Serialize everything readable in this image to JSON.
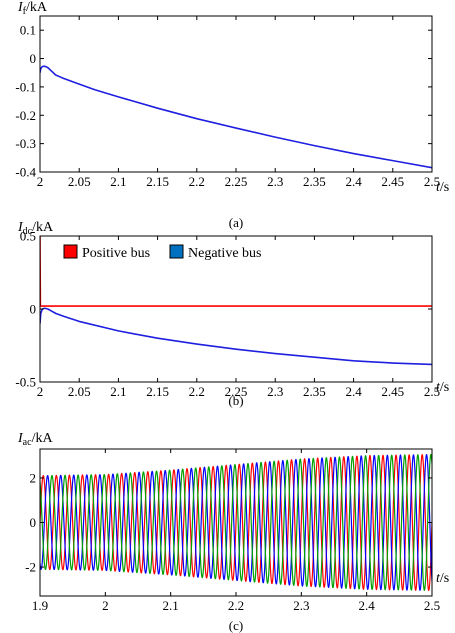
{
  "chart_data": [
    {
      "type": "line",
      "caption": "(a)",
      "ylabel": {
        "main": "I",
        "sub": "f",
        "unit": "/kA"
      },
      "xlabel": {
        "main": "t",
        "unit": "/s"
      },
      "xlim": [
        2.0,
        2.5
      ],
      "ylim": [
        -0.4,
        0.15
      ],
      "xticks": [
        2.0,
        2.05,
        2.1,
        2.15,
        2.2,
        2.25,
        2.3,
        2.35,
        2.4,
        2.45,
        2.5
      ],
      "xtick_labels": [
        "2",
        "2.05",
        "2.1",
        "2.15",
        "2.2",
        "2.25",
        "2.3",
        "2.35",
        "2.4",
        "2.45",
        "2.5"
      ],
      "yticks": [
        0.1,
        0.0,
        -0.1,
        -0.2,
        -0.3,
        -0.4
      ],
      "ytick_labels": [
        "0.1",
        "0",
        "-0.1",
        "-0.2",
        "-0.3",
        "-0.4"
      ],
      "grid": false,
      "series": [
        {
          "color": "#1f1fe0",
          "x": [
            2.0,
            2.001,
            2.003,
            2.006,
            2.01,
            2.015,
            2.02,
            2.025,
            2.03,
            2.04,
            2.05,
            2.07,
            2.1,
            2.15,
            2.2,
            2.25,
            2.3,
            2.35,
            2.4,
            2.45,
            2.5
          ],
          "y": [
            -0.05,
            -0.035,
            -0.028,
            -0.027,
            -0.032,
            -0.045,
            -0.058,
            -0.064,
            -0.07,
            -0.08,
            -0.09,
            -0.11,
            -0.135,
            -0.175,
            -0.212,
            -0.245,
            -0.277,
            -0.307,
            -0.335,
            -0.36,
            -0.385
          ]
        }
      ]
    },
    {
      "type": "line",
      "caption": "(b)",
      "ylabel": {
        "main": "I",
        "sub": "dc",
        "unit": "/kA"
      },
      "xlabel": {
        "main": "t",
        "unit": "/s"
      },
      "xlim": [
        2.0,
        2.5
      ],
      "ylim": [
        -0.5,
        0.5
      ],
      "xticks": [
        2.0,
        2.05,
        2.1,
        2.15,
        2.2,
        2.25,
        2.3,
        2.35,
        2.4,
        2.45,
        2.5
      ],
      "xtick_labels": [
        "2",
        "2.05",
        "2.1",
        "2.15",
        "2.2",
        "2.25",
        "2.3",
        "2.35",
        "2.4",
        "2.45",
        "2.5"
      ],
      "yticks": [
        0.5,
        0.0,
        -0.5
      ],
      "ytick_labels": [
        "0.5",
        "0",
        "-0.5"
      ],
      "grid": false,
      "legend_position": "top-left",
      "series": [
        {
          "name": "Positive bus",
          "color": "#ff0000",
          "legend_color": "#ff0000",
          "x": [
            2.0,
            2.0,
            2.0005,
            2.5
          ],
          "y": [
            0.02,
            0.5,
            0.02,
            0.02
          ]
        },
        {
          "name": "Negative bus",
          "color": "#1f1fe0",
          "legend_color": "#0070c0",
          "x": [
            2.0,
            2.001,
            2.003,
            2.006,
            2.01,
            2.015,
            2.02,
            2.03,
            2.05,
            2.1,
            2.15,
            2.2,
            2.25,
            2.3,
            2.35,
            2.4,
            2.45,
            2.5
          ],
          "y": [
            -0.1,
            -0.03,
            0.0,
            0.005,
            0.0,
            -0.015,
            -0.03,
            -0.05,
            -0.085,
            -0.15,
            -0.2,
            -0.24,
            -0.275,
            -0.305,
            -0.33,
            -0.355,
            -0.37,
            -0.38
          ]
        }
      ]
    },
    {
      "type": "line",
      "caption": "(c)",
      "ylabel": {
        "main": "I",
        "sub": "ac",
        "unit": "/kA"
      },
      "xlabel": {
        "main": "t",
        "unit": "/s"
      },
      "xlim": [
        1.9,
        2.5
      ],
      "ylim": [
        -3.3,
        3.3
      ],
      "xticks": [
        1.9,
        2.0,
        2.1,
        2.2,
        2.3,
        2.4,
        2.5
      ],
      "xtick_labels": [
        "1.9",
        "2",
        "2.1",
        "2.2",
        "2.3",
        "2.4",
        "2.5"
      ],
      "yticks": [
        2,
        0,
        -2
      ],
      "ytick_labels": [
        "2",
        "0",
        "-2"
      ],
      "grid": false,
      "waveform": {
        "kind": "three-phase sinusoid",
        "frequency_hz": 50,
        "amplitude_envelope": {
          "t": [
            1.9,
            2.0,
            2.1,
            2.2,
            2.3,
            2.4,
            2.5
          ],
          "amplitude": [
            2.1,
            2.15,
            2.35,
            2.6,
            2.85,
            3.0,
            3.05
          ]
        },
        "phase_offsets_deg": [
          0,
          -120,
          120
        ],
        "colors": [
          "#ff0000",
          "#0000ff",
          "#00a000"
        ]
      }
    }
  ]
}
